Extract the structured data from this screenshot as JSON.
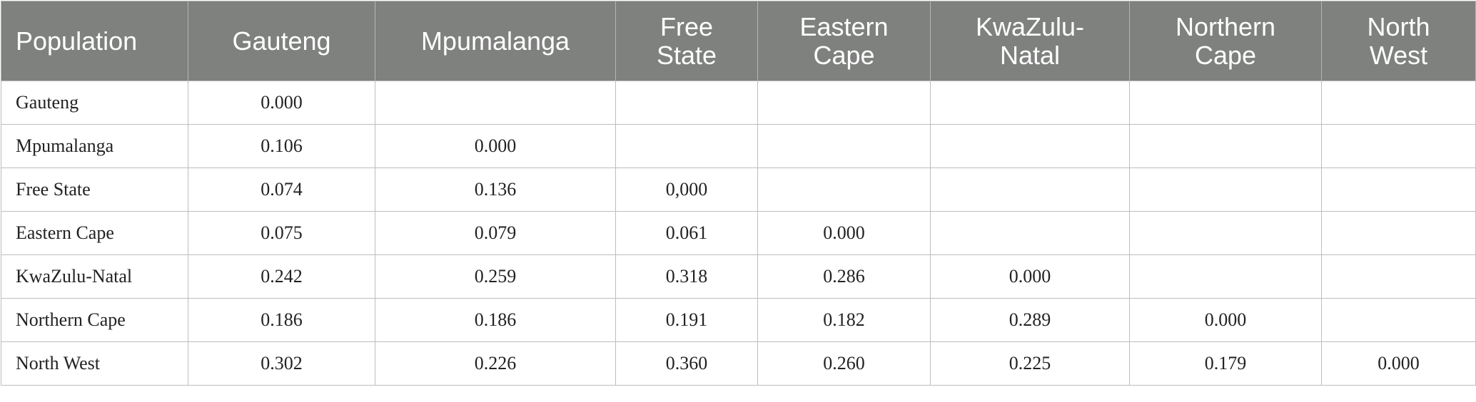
{
  "table": {
    "header": [
      "Population",
      "Gauteng",
      "Mpumalanga",
      "Free State",
      "Eastern Cape",
      "KwaZulu-Natal",
      "Northern Cape",
      "North West"
    ],
    "rows": [
      [
        "Gauteng",
        "0.000"
      ],
      [
        "Mpumalanga",
        "0.106",
        "0.000"
      ],
      [
        "Free State",
        "0.074",
        "0.136",
        "0,000"
      ],
      [
        "Eastern Cape",
        "0.075",
        "0.079",
        "0.061",
        "0.000"
      ],
      [
        "KwaZulu-Natal",
        "0.242",
        "0.259",
        "0.318",
        "0.286",
        "0.000"
      ],
      [
        "Northern Cape",
        "0.186",
        "0.186",
        "0.191",
        "0.182",
        "0.289",
        "0.000"
      ],
      [
        "North West",
        "0.302",
        "0.226",
        "0.360",
        "0.260",
        "0.225",
        "0.179",
        "0.000"
      ]
    ]
  }
}
